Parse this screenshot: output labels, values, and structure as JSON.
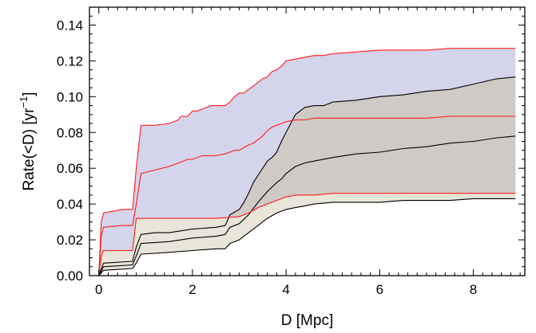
{
  "chart_data": {
    "type": "area",
    "title": "",
    "xlabel": "D [Mpc]",
    "ylabel_main": "Rate(<D) [yr",
    "ylabel_exp": "−1",
    "ylabel_close": "]",
    "xlim": [
      -0.2,
      9.1
    ],
    "ylim": [
      0.0,
      0.15
    ],
    "xticks": [
      0,
      2,
      4,
      6,
      8
    ],
    "xtick_labels": [
      "0",
      "2",
      "4",
      "6",
      "8"
    ],
    "yticks": [
      0.0,
      0.02,
      0.04,
      0.06,
      0.08,
      0.1,
      0.12,
      0.14
    ],
    "ytick_labels": [
      "0.00",
      "0.02",
      "0.04",
      "0.06",
      "0.08",
      "0.10",
      "0.12",
      "0.14"
    ],
    "grid": false,
    "colors": {
      "red_line": "#ff1a1a",
      "black_line": "#000000",
      "band_red": "#d4d4ea",
      "band_black": "#cfcac5",
      "band_low": "#e9e5d9"
    },
    "series": [
      {
        "group": "red",
        "role": "upper",
        "x": [
          0,
          0.05,
          0.1,
          0.5,
          0.72,
          0.8,
          0.9,
          1.2,
          1.5,
          1.7,
          1.75,
          1.9,
          2.0,
          2.1,
          2.2,
          2.4,
          2.6,
          2.7,
          2.8,
          2.9,
          3.0,
          3.1,
          3.2,
          3.3,
          3.4,
          3.5,
          3.6,
          3.7,
          3.8,
          3.9,
          4.0,
          4.2,
          4.4,
          4.6,
          4.8,
          5.0,
          5.5,
          6.0,
          6.5,
          7.0,
          7.5,
          8.0,
          8.5,
          8.9
        ],
        "y": [
          0,
          0.03,
          0.035,
          0.037,
          0.037,
          0.06,
          0.084,
          0.084,
          0.085,
          0.087,
          0.089,
          0.089,
          0.092,
          0.092,
          0.093,
          0.095,
          0.095,
          0.095,
          0.097,
          0.1,
          0.102,
          0.102,
          0.104,
          0.106,
          0.108,
          0.11,
          0.111,
          0.114,
          0.115,
          0.117,
          0.12,
          0.121,
          0.122,
          0.123,
          0.123,
          0.124,
          0.125,
          0.126,
          0.126,
          0.126,
          0.127,
          0.127,
          0.127,
          0.127
        ]
      },
      {
        "group": "red",
        "role": "middle",
        "x": [
          0,
          0.05,
          0.1,
          0.5,
          0.72,
          0.8,
          0.9,
          1.2,
          1.5,
          1.7,
          1.9,
          2.0,
          2.1,
          2.2,
          2.5,
          2.7,
          2.8,
          2.9,
          3.0,
          3.2,
          3.3,
          3.4,
          3.5,
          3.6,
          3.7,
          3.8,
          3.9,
          4.0,
          4.2,
          4.4,
          4.6,
          4.8,
          5.0,
          5.5,
          6.0,
          6.5,
          7.0,
          7.5,
          8.0,
          8.5,
          8.9
        ],
        "y": [
          0,
          0.022,
          0.027,
          0.028,
          0.028,
          0.04,
          0.057,
          0.059,
          0.061,
          0.063,
          0.065,
          0.065,
          0.066,
          0.067,
          0.067,
          0.068,
          0.069,
          0.07,
          0.07,
          0.073,
          0.074,
          0.076,
          0.078,
          0.081,
          0.083,
          0.084,
          0.085,
          0.086,
          0.087,
          0.087,
          0.088,
          0.088,
          0.088,
          0.088,
          0.088,
          0.088,
          0.088,
          0.089,
          0.089,
          0.089,
          0.089
        ]
      },
      {
        "group": "red",
        "role": "lower",
        "x": [
          0,
          0.05,
          0.1,
          0.72,
          0.8,
          1.5,
          2.0,
          2.5,
          3.0,
          3.2,
          3.4,
          3.6,
          3.8,
          4.0,
          4.2,
          4.6,
          5.0,
          6.0,
          7.0,
          8.0,
          8.9
        ],
        "y": [
          0,
          0.011,
          0.014,
          0.014,
          0.032,
          0.032,
          0.032,
          0.032,
          0.033,
          0.035,
          0.038,
          0.04,
          0.042,
          0.044,
          0.045,
          0.045,
          0.046,
          0.046,
          0.046,
          0.046,
          0.046
        ]
      },
      {
        "group": "black",
        "role": "upper",
        "x": [
          0,
          0.1,
          0.72,
          0.8,
          0.9,
          1.2,
          1.5,
          2.0,
          2.5,
          2.7,
          2.8,
          3.0,
          3.1,
          3.2,
          3.3,
          3.5,
          3.6,
          3.7,
          3.8,
          3.9,
          4.0,
          4.2,
          4.4,
          4.6,
          4.8,
          5.0,
          5.5,
          6.0,
          6.5,
          7.0,
          7.5,
          8.0,
          8.5,
          8.9
        ],
        "y": [
          0,
          0.007,
          0.008,
          0.016,
          0.023,
          0.024,
          0.024,
          0.026,
          0.027,
          0.028,
          0.034,
          0.037,
          0.041,
          0.046,
          0.052,
          0.06,
          0.064,
          0.066,
          0.069,
          0.075,
          0.08,
          0.09,
          0.094,
          0.095,
          0.095,
          0.097,
          0.098,
          0.1,
          0.101,
          0.103,
          0.104,
          0.107,
          0.11,
          0.111
        ]
      },
      {
        "group": "black",
        "role": "middle",
        "x": [
          0,
          0.1,
          0.72,
          0.8,
          0.9,
          1.5,
          2.0,
          2.5,
          2.7,
          2.8,
          3.0,
          3.2,
          3.4,
          3.6,
          3.8,
          3.9,
          4.0,
          4.2,
          4.4,
          4.6,
          5.0,
          5.5,
          6.0,
          6.5,
          7.0,
          7.5,
          8.0,
          8.5,
          8.9
        ],
        "y": [
          0,
          0.005,
          0.006,
          0.011,
          0.018,
          0.019,
          0.021,
          0.022,
          0.023,
          0.027,
          0.029,
          0.034,
          0.041,
          0.047,
          0.052,
          0.054,
          0.057,
          0.061,
          0.063,
          0.064,
          0.066,
          0.068,
          0.069,
          0.071,
          0.072,
          0.074,
          0.075,
          0.077,
          0.078
        ]
      },
      {
        "group": "black",
        "role": "lower",
        "x": [
          0,
          0.1,
          0.72,
          0.8,
          0.9,
          1.5,
          2.0,
          2.5,
          2.7,
          2.8,
          3.0,
          3.2,
          3.4,
          3.6,
          3.8,
          4.0,
          4.2,
          4.4,
          4.6,
          5.0,
          5.5,
          6.0,
          6.5,
          7.0,
          7.5,
          8.0,
          8.5,
          8.9
        ],
        "y": [
          0,
          0.003,
          0.004,
          0.007,
          0.012,
          0.013,
          0.014,
          0.015,
          0.015,
          0.018,
          0.02,
          0.024,
          0.028,
          0.032,
          0.035,
          0.037,
          0.038,
          0.039,
          0.04,
          0.041,
          0.041,
          0.041,
          0.042,
          0.042,
          0.042,
          0.043,
          0.043,
          0.043
        ]
      }
    ]
  }
}
